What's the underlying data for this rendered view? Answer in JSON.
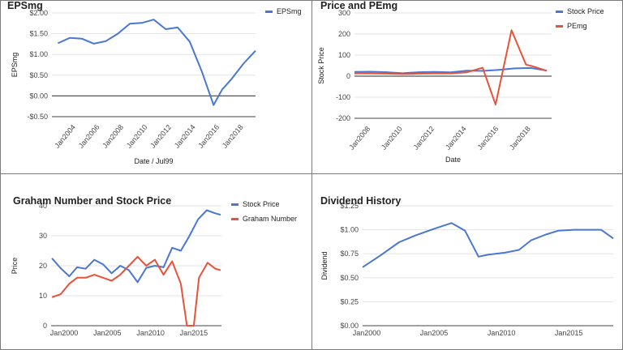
{
  "chart_data": [
    {
      "type": "line",
      "title": "EPSmg",
      "xlabel": "Date / Jul99",
      "ylabel": "EPSmg",
      "xlim": [
        2002,
        2019
      ],
      "ylim": [
        -0.5,
        2.0
      ],
      "yticks": [
        -0.5,
        0.0,
        0.5,
        1.0,
        1.5,
        2.0
      ],
      "ytick_labels": [
        "-$0.50",
        "$0.00",
        "$0.50",
        "$1.00",
        "$1.50",
        "$2.00"
      ],
      "xticks": [
        2004,
        2006,
        2008,
        2010,
        2012,
        2014,
        2016,
        2018
      ],
      "xtick_labels": [
        "Jan2004",
        "Jan2006",
        "Jan2008",
        "Jan2010",
        "Jan2012",
        "Jan2014",
        "Jan2016",
        "Jan2018"
      ],
      "zero_line": true,
      "legend_position": "top-right",
      "series": [
        {
          "name": "EPSmg",
          "color": "#4a77d4",
          "x": [
            2002.5,
            2003.5,
            2004.5,
            2005.5,
            2006.5,
            2007.5,
            2008.5,
            2009.5,
            2010.5,
            2011.5,
            2012.5,
            2013.5,
            2014.5,
            2015.5,
            2016.2,
            2017.0,
            2018.0,
            2019.0
          ],
          "y": [
            1.27,
            1.4,
            1.38,
            1.26,
            1.32,
            1.5,
            1.74,
            1.76,
            1.84,
            1.61,
            1.65,
            1.31,
            0.6,
            -0.22,
            0.15,
            0.41,
            0.78,
            1.09
          ]
        }
      ]
    },
    {
      "type": "line",
      "title": "Price and PEmg",
      "xlabel": "Date",
      "ylabel": "Stock Price",
      "xlim": [
        2007,
        2019.3
      ],
      "ylim": [
        -200,
        300
      ],
      "yticks": [
        -200,
        -100,
        0,
        100,
        200,
        300
      ],
      "ytick_labels": [
        "-200",
        "-100",
        "0",
        "100",
        "200",
        "300"
      ],
      "xticks": [
        2008,
        2010,
        2012,
        2014,
        2016,
        2018
      ],
      "xtick_labels": [
        "Jan2008",
        "Jan2010",
        "Jan2012",
        "Jan2014",
        "Jan2016",
        "Jan2018"
      ],
      "zero_line": true,
      "legend_position": "top-right",
      "series": [
        {
          "name": "Stock Price",
          "color": "#4a77d4",
          "x": [
            2007.0,
            2008.0,
            2009.0,
            2010.0,
            2011.0,
            2012.0,
            2013.0,
            2014.0,
            2015.0,
            2016.0,
            2017.0,
            2018.0,
            2019.0
          ],
          "y": [
            20,
            21,
            19,
            14,
            19,
            20,
            18,
            26,
            25,
            30,
            37,
            39,
            26
          ]
        },
        {
          "name": "PEmg",
          "color": "#e8523a",
          "x": [
            2007.0,
            2008.0,
            2009.0,
            2010.0,
            2011.0,
            2012.0,
            2013.0,
            2014.0,
            2015.0,
            2015.8,
            2016.8,
            2017.7,
            2018.2,
            2019.0
          ],
          "y": [
            13,
            13,
            12,
            10,
            12,
            13,
            13,
            18,
            40,
            -135,
            218,
            55,
            45,
            25
          ]
        }
      ]
    },
    {
      "type": "line",
      "title": "Graham Number and Stock Price",
      "xlabel": "",
      "ylabel": "Price",
      "xlim": [
        1998.5,
        2018.2
      ],
      "ylim": [
        0,
        40
      ],
      "yticks": [
        0,
        10,
        20,
        30,
        40
      ],
      "ytick_labels": [
        "0",
        "10",
        "20",
        "30",
        "40"
      ],
      "xticks": [
        2000,
        2005,
        2010,
        2015
      ],
      "xtick_labels": [
        "Jan2000",
        "Jan2005",
        "Jan2010",
        "Jan2015"
      ],
      "legend_position": "top-right",
      "series": [
        {
          "name": "Stock Price",
          "color": "#4a77d4",
          "x": [
            1998.6,
            1999.6,
            2000.6,
            2001.5,
            2002.5,
            2003.5,
            2004.5,
            2005.5,
            2006.5,
            2007.5,
            2008.5,
            2009.5,
            2010.5,
            2011.5,
            2012.5,
            2013.5,
            2014.5,
            2015.5,
            2016.5,
            2017.5,
            2018.1
          ],
          "y": [
            22.5,
            19.2,
            16.5,
            19.5,
            19.0,
            22.0,
            20.5,
            17.5,
            20.0,
            18.5,
            14.5,
            19.3,
            20.0,
            19.5,
            26.0,
            25.0,
            30.0,
            35.5,
            38.5,
            37.5,
            37.0
          ]
        },
        {
          "name": "Graham Number",
          "color": "#e8523a",
          "x": [
            1998.6,
            1999.6,
            2000.6,
            2001.5,
            2002.5,
            2003.5,
            2004.5,
            2005.5,
            2006.5,
            2007.5,
            2008.5,
            2009.5,
            2010.5,
            2011.5,
            2012.5,
            2013.5,
            2014.2,
            2015.0,
            2015.6,
            2016.6,
            2017.5,
            2018.1
          ],
          "y": [
            9.5,
            10.5,
            14.0,
            16.0,
            16.0,
            17.0,
            16.0,
            15.0,
            17.0,
            20.0,
            23.0,
            20.0,
            22.0,
            17.0,
            21.5,
            14.0,
            0.0,
            0.0,
            16.0,
            21.0,
            19.0,
            18.5
          ]
        }
      ]
    },
    {
      "type": "line",
      "title": "Dividend History",
      "xlabel": "",
      "ylabel": "Dividend",
      "xlim": [
        1999.7,
        2018.3
      ],
      "ylim": [
        0,
        1.25
      ],
      "yticks": [
        0,
        0.25,
        0.5,
        0.75,
        1.0,
        1.25
      ],
      "ytick_labels": [
        "$0.00",
        "$0.25",
        "$0.50",
        "$0.75",
        "$1.00",
        "$1.25"
      ],
      "xticks": [
        2000,
        2005,
        2010,
        2015
      ],
      "xtick_labels": [
        "Jan2000",
        "Jan2005",
        "Jan2010",
        "Jan2015"
      ],
      "legend_position": "none",
      "series": [
        {
          "name": "",
          "color": "#4a77d4",
          "x": [
            1999.7,
            2001.0,
            2002.4,
            2003.6,
            2005.0,
            2006.3,
            2007.3,
            2008.3,
            2009.0,
            2010.2,
            2011.3,
            2012.2,
            2013.3,
            2014.2,
            2015.4,
            2016.4,
            2017.4,
            2018.3
          ],
          "y": [
            0.61,
            0.73,
            0.87,
            0.94,
            1.01,
            1.07,
            0.99,
            0.72,
            0.74,
            0.76,
            0.79,
            0.89,
            0.95,
            0.99,
            1.0,
            1.0,
            1.0,
            0.91
          ]
        }
      ]
    }
  ]
}
